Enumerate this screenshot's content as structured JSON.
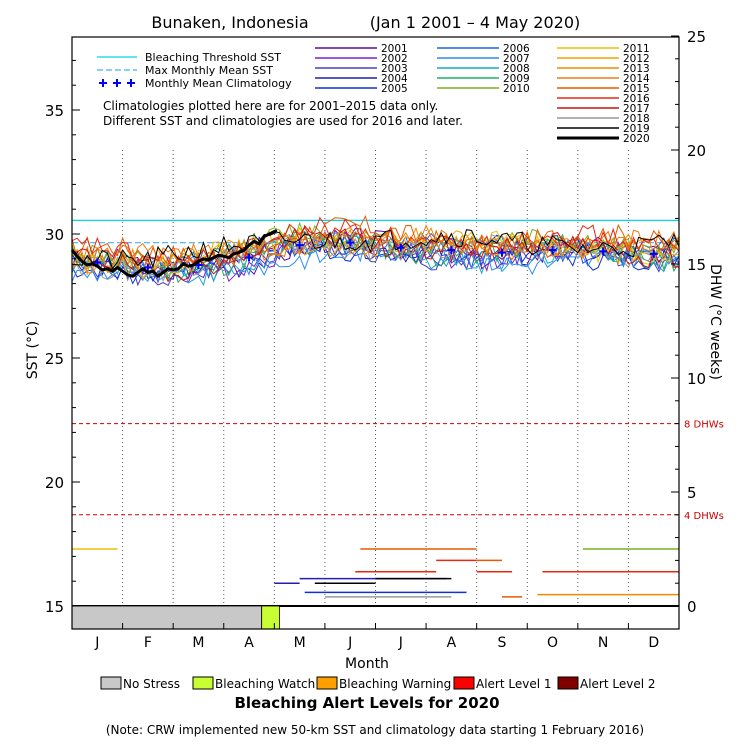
{
  "chart_data": {
    "type": "line",
    "title": "Bunaken, Indonesia",
    "date_range": "(Jan 1 2001 – 4 May 2020)",
    "xlabel": "Month",
    "ylabel_left": "SST (°C)",
    "ylabel_right": "DHW (°C weeks)",
    "x_ticks": [
      "J",
      "F",
      "M",
      "A",
      "M",
      "J",
      "J",
      "A",
      "S",
      "O",
      "N",
      "D"
    ],
    "ylim_sst": [
      14.0,
      38.0
    ],
    "ylim_dhw": [
      -1,
      25
    ],
    "sst_ticks": [
      15,
      20,
      25,
      30,
      35
    ],
    "dhw_ticks": [
      0,
      5,
      10,
      15,
      20,
      25
    ],
    "reference_lines": [
      {
        "name": "8 DHWs",
        "dhw": 8
      },
      {
        "name": "4 DHWs",
        "dhw": 4
      }
    ],
    "bleaching_threshold_sst": 30.55,
    "legend_refs": [
      "Bleaching Threshold SST",
      "Max Monthly Mean SST",
      "Monthly Mean Climatology"
    ],
    "climatology_note": [
      "Climatologies plotted here are for 2001–2015 data only.",
      "Different SST and climatologies are used for 2016 and later."
    ],
    "years": [
      {
        "name": "2001",
        "color": "#5a0aa0",
        "offset": -0.05,
        "phase": 0.3,
        "dhw_segments": []
      },
      {
        "name": "2002",
        "color": "#7c1fd2",
        "offset": -0.15,
        "phase": 1.1,
        "dhw_segments": []
      },
      {
        "name": "2003",
        "color": "#4040c8",
        "offset": -0.25,
        "phase": 2.0,
        "dhw_segments": []
      },
      {
        "name": "2004",
        "color": "#2020b0",
        "offset": 0.05,
        "phase": 2.7,
        "dhw_segments": [
          [
            4.0,
            4.5,
            1.0
          ],
          [
            4.5,
            7.4,
            1.2
          ]
        ]
      },
      {
        "name": "2005",
        "color": "#1030d8",
        "offset": -0.1,
        "phase": 3.6,
        "dhw_segments": [
          [
            4.6,
            7.8,
            0.6
          ]
        ]
      },
      {
        "name": "2006",
        "color": "#1a66e0",
        "offset": 0.1,
        "phase": 4.4,
        "dhw_segments": []
      },
      {
        "name": "2007",
        "color": "#2a8cf0",
        "offset": -0.3,
        "phase": 5.2,
        "dhw_segments": []
      },
      {
        "name": "2008",
        "color": "#18a8c8",
        "offset": -0.2,
        "phase": 0.8,
        "dhw_segments": []
      },
      {
        "name": "2009",
        "color": "#20b060",
        "offset": 0.0,
        "phase": 1.7,
        "dhw_segments": []
      },
      {
        "name": "2010",
        "color": "#7ab41e",
        "offset": 0.35,
        "phase": 2.4,
        "dhw_segments": [
          [
            9.7,
            10.1,
            0.0
          ],
          [
            10.1,
            12.0,
            2.5
          ]
        ]
      },
      {
        "name": "2011",
        "color": "#f0c000",
        "offset": 0.2,
        "phase": 3.1,
        "dhw_segments": [
          [
            0.0,
            0.9,
            2.5
          ]
        ]
      },
      {
        "name": "2012",
        "color": "#f5a200",
        "offset": 0.15,
        "phase": 3.9,
        "dhw_segments": []
      },
      {
        "name": "2013",
        "color": "#f08a00",
        "offset": 0.25,
        "phase": 4.7,
        "dhw_segments": [
          [
            9.2,
            12.0,
            0.5
          ]
        ]
      },
      {
        "name": "2014",
        "color": "#f07a10",
        "offset": 0.3,
        "phase": 5.5,
        "dhw_segments": []
      },
      {
        "name": "2015",
        "color": "#e85a00",
        "offset": 0.45,
        "phase": 0.5,
        "dhw_segments": [
          [
            5.3,
            5.7,
            0.0
          ],
          [
            5.7,
            8.0,
            2.5
          ],
          [
            8.0,
            8.5,
            2.0
          ],
          [
            8.5,
            8.9,
            0.4
          ]
        ]
      },
      {
        "name": "2016",
        "color": "#e82810",
        "offset": 0.4,
        "phase": 1.4,
        "dhw_segments": [
          [
            5.6,
            7.2,
            1.5
          ],
          [
            7.2,
            8.0,
            2.0
          ],
          [
            8.0,
            8.7,
            1.5
          ],
          [
            9.0,
            9.3,
            0.0
          ],
          [
            9.3,
            12.0,
            1.5
          ]
        ]
      },
      {
        "name": "2017",
        "color": "#cc1010",
        "offset": 0.1,
        "phase": 2.2,
        "dhw_segments": []
      },
      {
        "name": "2018",
        "color": "#999999",
        "offset": 0.0,
        "phase": 3.3,
        "dhw_segments": [
          [
            5.0,
            7.5,
            0.4
          ]
        ]
      },
      {
        "name": "2019",
        "color": "#000000",
        "offset": 0.35,
        "phase": 4.1,
        "dhw_segments": [
          [
            4.8,
            6.0,
            1.0
          ],
          [
            6.0,
            7.5,
            1.2
          ],
          [
            7.5,
            7.8,
            0.0
          ]
        ]
      },
      {
        "name": "2020",
        "color": "#000000",
        "offset": 0.0,
        "phase": 0.0,
        "thick": true,
        "dhw_segments": []
      }
    ],
    "climatology": [
      28.85,
      28.65,
      28.75,
      29.05,
      29.55,
      29.65,
      29.45,
      29.35,
      29.25,
      29.35,
      29.3,
      29.2
    ],
    "mmm_sst": 29.65,
    "sst_2020": [
      [
        0.0,
        29.35
      ],
      [
        0.1,
        29.1
      ],
      [
        0.2,
        28.9
      ],
      [
        0.3,
        28.75
      ],
      [
        0.4,
        28.8
      ],
      [
        0.5,
        28.7
      ],
      [
        0.6,
        28.55
      ],
      [
        0.7,
        28.6
      ],
      [
        0.8,
        28.5
      ],
      [
        0.9,
        28.65
      ],
      [
        1.0,
        28.5
      ],
      [
        1.1,
        28.35
      ],
      [
        1.2,
        28.3
      ],
      [
        1.3,
        28.45
      ],
      [
        1.4,
        28.6
      ],
      [
        1.5,
        28.45
      ],
      [
        1.6,
        28.5
      ],
      [
        1.7,
        28.3
      ],
      [
        1.8,
        28.45
      ],
      [
        1.9,
        28.6
      ],
      [
        2.0,
        28.55
      ],
      [
        2.1,
        28.6
      ],
      [
        2.2,
        28.8
      ],
      [
        2.3,
        28.7
      ],
      [
        2.4,
        28.75
      ],
      [
        2.5,
        28.9
      ],
      [
        2.6,
        29.0
      ],
      [
        2.7,
        28.95
      ],
      [
        2.8,
        29.05
      ],
      [
        2.9,
        29.15
      ],
      [
        3.0,
        29.1
      ],
      [
        3.1,
        29.05
      ],
      [
        3.2,
        29.2
      ],
      [
        3.3,
        29.25
      ],
      [
        3.4,
        29.35
      ],
      [
        3.5,
        29.55
      ],
      [
        3.6,
        29.7
      ],
      [
        3.7,
        29.6
      ],
      [
        3.8,
        29.9
      ],
      [
        3.9,
        30.0
      ],
      [
        4.05,
        30.15
      ]
    ],
    "dhw_2020": [
      [
        0.0,
        0.0
      ],
      [
        3.9,
        0.0
      ]
    ],
    "bottom_bar_2020": {
      "no_stress_until": 3.75,
      "watch_until": 4.1
    },
    "alert_legend_title": "Bleaching Alert Levels for 2020",
    "alert_levels": [
      {
        "label": "No Stress",
        "color": "#c8c8c8"
      },
      {
        "label": "Bleaching Watch",
        "color": "#c8ff32"
      },
      {
        "label": "Bleaching Warning",
        "color": "#ffa000"
      },
      {
        "label": "Alert Level 1",
        "color": "#ff0000"
      },
      {
        "label": "Alert Level 2",
        "color": "#800000"
      }
    ],
    "footnote": "(Note: CRW implemented new 50-km SST and climatology data starting 1 February 2016)",
    "colors": {
      "threshold": "#00d8e8",
      "mmm": "#3cb4ff",
      "climatology_marker": "#0000ff",
      "reference_dhw": "#cc0000"
    }
  }
}
